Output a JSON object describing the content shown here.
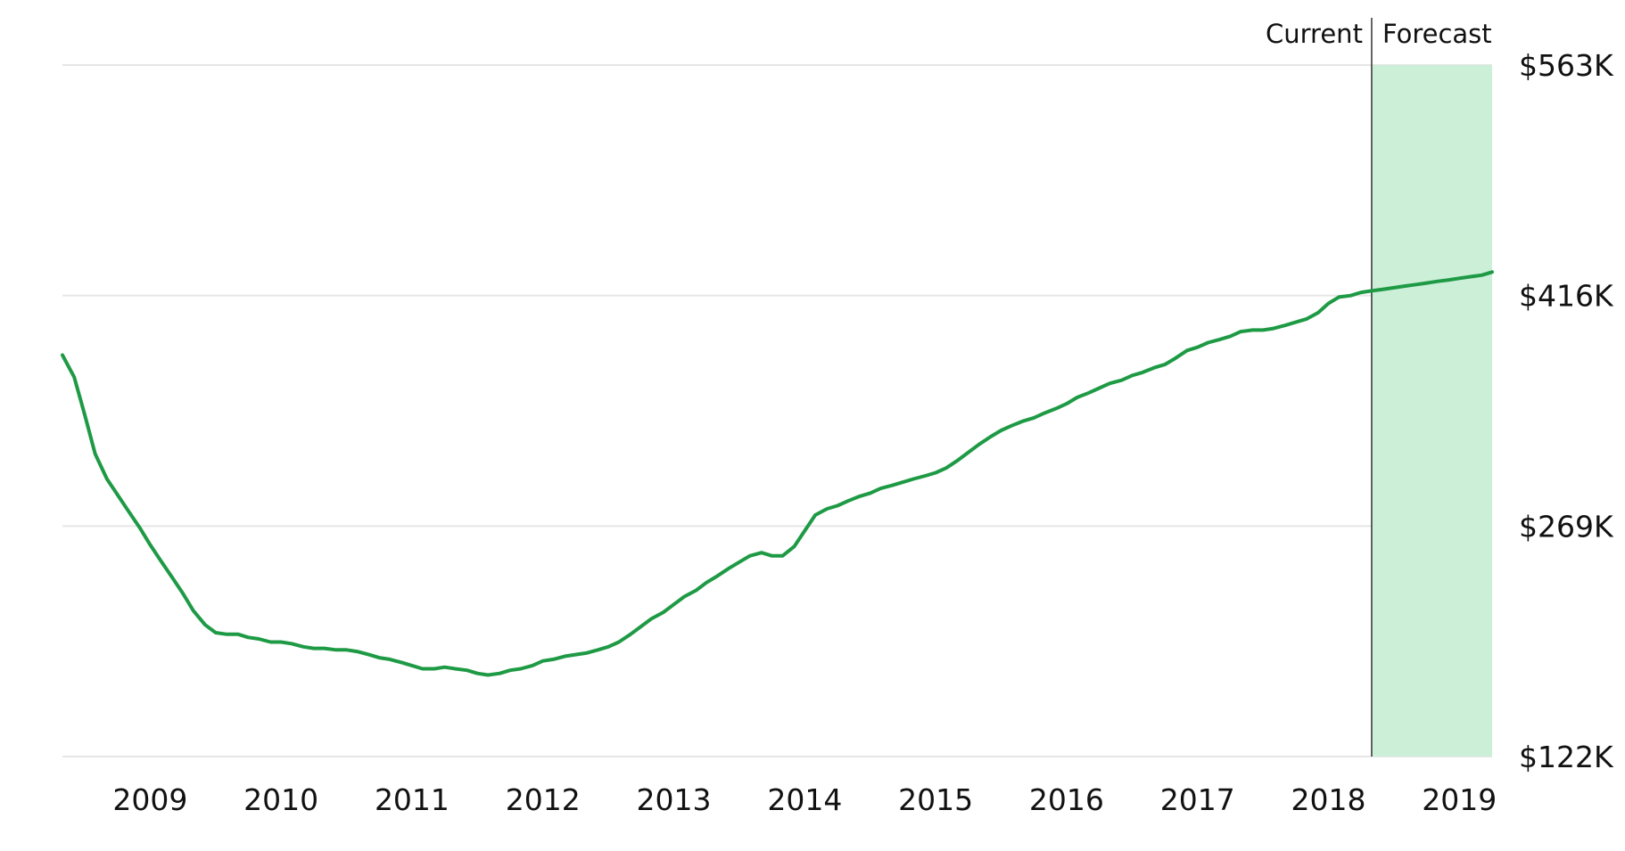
{
  "chart_data": {
    "type": "line",
    "title": "",
    "xlabel": "",
    "ylabel": "",
    "x_tick_labels": [
      "2009",
      "2010",
      "2011",
      "2012",
      "2013",
      "2014",
      "2015",
      "2016",
      "2017",
      "2018",
      "2019"
    ],
    "y_tick_labels": [
      "$563K",
      "$416K",
      "$269K",
      "$122K"
    ],
    "ylim": [
      122,
      563
    ],
    "xlim": [
      2008.33,
      2019.25
    ],
    "grid": "horizontal",
    "forecast_start": 2018.33,
    "region_labels": {
      "current": "Current",
      "forecast": "Forecast"
    },
    "colors": {
      "line": "#1e9a45",
      "forecast_fill": "#ccefd8",
      "grid": "#e6e6e6",
      "divider": "#333333"
    },
    "series": [
      {
        "unit": "$K",
        "x": [
          2008.33,
          2008.42,
          2008.5,
          2008.58,
          2008.67,
          2008.75,
          2008.83,
          2008.92,
          2009.0,
          2009.08,
          2009.17,
          2009.25,
          2009.33,
          2009.42,
          2009.5,
          2009.58,
          2009.67,
          2009.75,
          2009.83,
          2009.92,
          2010.0,
          2010.08,
          2010.17,
          2010.25,
          2010.33,
          2010.42,
          2010.5,
          2010.58,
          2010.67,
          2010.75,
          2010.83,
          2010.92,
          2011.0,
          2011.08,
          2011.17,
          2011.25,
          2011.33,
          2011.42,
          2011.5,
          2011.58,
          2011.67,
          2011.75,
          2011.83,
          2011.92,
          2012.0,
          2012.08,
          2012.17,
          2012.25,
          2012.33,
          2012.42,
          2012.5,
          2012.58,
          2012.67,
          2012.75,
          2012.83,
          2012.92,
          2013.0,
          2013.08,
          2013.17,
          2013.25,
          2013.33,
          2013.42,
          2013.5,
          2013.58,
          2013.67,
          2013.75,
          2013.83,
          2013.92,
          2014.0,
          2014.08,
          2014.17,
          2014.25,
          2014.33,
          2014.42,
          2014.5,
          2014.58,
          2014.67,
          2014.75,
          2014.83,
          2014.92,
          2015.0,
          2015.08,
          2015.17,
          2015.25,
          2015.33,
          2015.42,
          2015.5,
          2015.58,
          2015.67,
          2015.75,
          2015.83,
          2015.92,
          2016.0,
          2016.08,
          2016.17,
          2016.25,
          2016.33,
          2016.42,
          2016.5,
          2016.58,
          2016.67,
          2016.75,
          2016.83,
          2016.92,
          2017.0,
          2017.08,
          2017.17,
          2017.25,
          2017.33,
          2017.42,
          2017.5,
          2017.58,
          2017.67,
          2017.75,
          2017.83,
          2017.92,
          2018.0,
          2018.08,
          2018.17,
          2018.25,
          2018.33,
          2018.42,
          2018.5,
          2018.58,
          2018.67,
          2018.75,
          2018.83,
          2018.92,
          2019.0,
          2019.08,
          2019.17,
          2019.25
        ],
        "values": [
          378,
          364,
          340,
          315,
          299,
          289,
          279,
          268,
          257,
          247,
          236,
          226,
          215,
          206,
          201,
          200,
          200,
          198,
          197,
          195,
          195,
          194,
          192,
          191,
          191,
          190,
          190,
          189,
          187,
          185,
          184,
          182,
          180,
          178,
          178,
          179,
          178,
          177,
          175,
          174,
          175,
          177,
          178,
          180,
          183,
          184,
          186,
          187,
          188,
          190,
          192,
          195,
          200,
          205,
          210,
          214,
          219,
          224,
          228,
          233,
          237,
          242,
          246,
          250,
          252,
          250,
          250,
          256,
          266,
          276,
          280,
          282,
          285,
          288,
          290,
          293,
          295,
          297,
          299,
          301,
          303,
          306,
          311,
          316,
          321,
          326,
          330,
          333,
          336,
          338,
          341,
          344,
          347,
          351,
          354,
          357,
          360,
          362,
          365,
          367,
          370,
          372,
          376,
          381,
          383,
          386,
          388,
          390,
          393,
          394,
          394,
          395,
          397,
          399,
          401,
          405,
          411,
          415,
          416,
          418,
          419,
          420,
          421,
          422,
          423,
          424,
          425,
          426,
          427,
          428,
          429,
          431
        ],
        "forecast_from_index": 120
      }
    ]
  }
}
